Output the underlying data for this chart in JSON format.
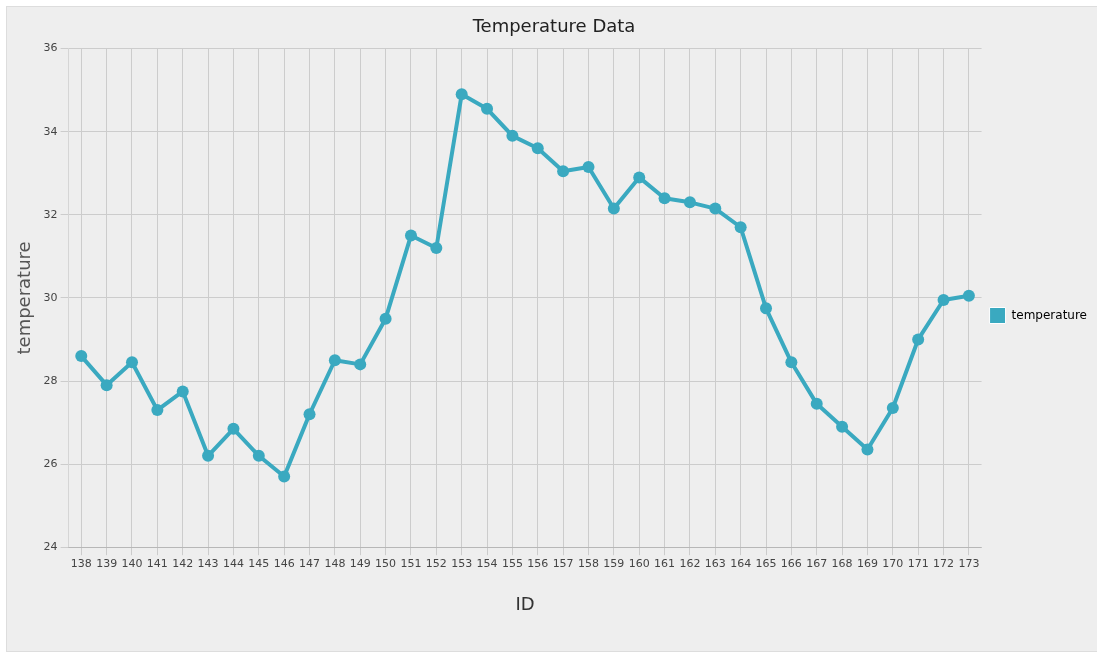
{
  "chart_data": {
    "type": "line",
    "title": "Temperature Data",
    "xlabel": "ID",
    "ylabel": "temperature",
    "categories": [
      "138",
      "139",
      "140",
      "141",
      "142",
      "143",
      "144",
      "145",
      "146",
      "147",
      "148",
      "149",
      "150",
      "151",
      "152",
      "153",
      "154",
      "155",
      "156",
      "157",
      "158",
      "159",
      "160",
      "161",
      "162",
      "163",
      "164",
      "165",
      "166",
      "167",
      "168",
      "169",
      "170",
      "171",
      "172",
      "173"
    ],
    "series": [
      {
        "name": "temperature",
        "color": "#3aa9c0",
        "values": [
          28.6,
          27.9,
          28.45,
          27.3,
          27.75,
          26.2,
          26.85,
          26.2,
          25.7,
          27.2,
          28.5,
          28.4,
          29.5,
          31.5,
          31.2,
          34.9,
          34.55,
          33.9,
          33.6,
          33.05,
          33.15,
          32.15,
          32.9,
          32.4,
          32.3,
          32.15,
          31.7,
          29.75,
          28.45,
          27.45,
          26.9,
          26.35,
          27.35,
          29.0,
          29.95,
          30.05
        ]
      }
    ],
    "ylim": [
      24,
      36
    ],
    "yticks": [
      24,
      26,
      28,
      30,
      32,
      34,
      36
    ],
    "grid": true,
    "legend": "right",
    "marker": "circle",
    "line_style": "solid"
  }
}
